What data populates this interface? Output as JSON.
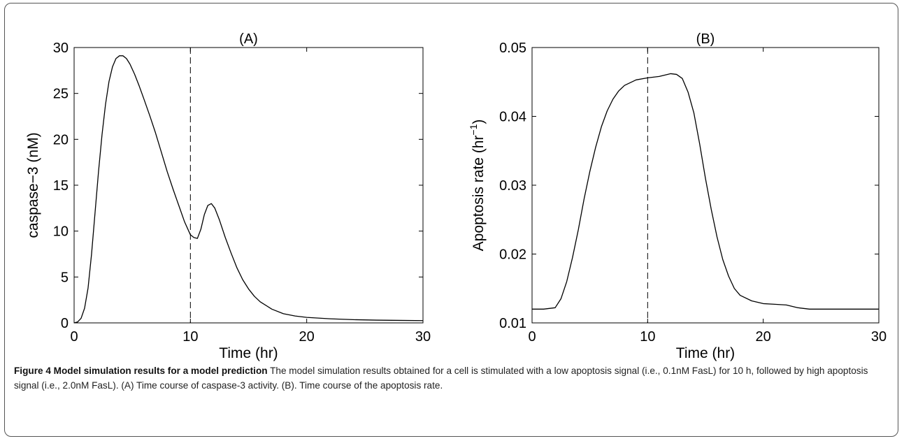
{
  "chart_data": [
    {
      "type": "line",
      "title": "(A)",
      "xlabel": "Time (hr)",
      "ylabel": "caspase−3 (nM)",
      "xlim": [
        0,
        30
      ],
      "ylim": [
        0,
        30
      ],
      "xticks": [
        0,
        10,
        20,
        30
      ],
      "yticks": [
        0,
        5,
        10,
        15,
        20,
        25,
        30
      ],
      "ytick_labels": [
        "0",
        "5",
        "10",
        "15",
        "20",
        "25",
        "30"
      ],
      "grid": false,
      "vline_x": 10,
      "series": [
        {
          "x": [
            0,
            0.3,
            0.6,
            0.9,
            1.2,
            1.5,
            1.8,
            2.1,
            2.4,
            2.7,
            3.0,
            3.3,
            3.6,
            3.9,
            4.2,
            4.5,
            4.8,
            5.2,
            5.6,
            6.0,
            6.5,
            7.0,
            7.5,
            8.0,
            8.5,
            9.0,
            9.5,
            10.0,
            10.3,
            10.6,
            10.9,
            11.2,
            11.5,
            11.8,
            12.1,
            12.5,
            13.0,
            13.5,
            14.0,
            14.5,
            15.0,
            15.5,
            16.0,
            17.0,
            18.0,
            19.0,
            20.0,
            22.0,
            24.0,
            26.0,
            28.0,
            30.0
          ],
          "y": [
            0,
            0.1,
            0.5,
            1.6,
            3.8,
            7.5,
            12.0,
            16.5,
            20.5,
            23.8,
            26.3,
            27.9,
            28.8,
            29.1,
            29.1,
            28.8,
            28.2,
            27.1,
            25.8,
            24.4,
            22.6,
            20.7,
            18.6,
            16.5,
            14.6,
            12.8,
            11.0,
            9.6,
            9.3,
            9.2,
            10.2,
            11.8,
            12.8,
            13.0,
            12.5,
            11.2,
            9.3,
            7.6,
            6.0,
            4.7,
            3.7,
            2.9,
            2.3,
            1.5,
            1.0,
            0.75,
            0.6,
            0.45,
            0.35,
            0.3,
            0.27,
            0.25
          ]
        }
      ]
    },
    {
      "type": "line",
      "title": "(B)",
      "xlabel": "Time (hr)",
      "ylabel": "Apoptosis rate (hr",
      "ylabel_sup": "−1",
      "ylabel_end": ")",
      "xlim": [
        0,
        30
      ],
      "ylim": [
        0.01,
        0.05
      ],
      "xticks": [
        0,
        10,
        20,
        30
      ],
      "yticks": [
        0.01,
        0.02,
        0.03,
        0.04,
        0.05
      ],
      "ytick_labels": [
        "0.01",
        "0.02",
        "0.03",
        "0.04",
        "0.05"
      ],
      "grid": false,
      "vline_x": 10,
      "series": [
        {
          "x": [
            0,
            1.0,
            2.0,
            2.5,
            3.0,
            3.5,
            4.0,
            4.5,
            5.0,
            5.5,
            6.0,
            6.5,
            7.0,
            7.5,
            8.0,
            9.0,
            10.0,
            11.0,
            11.5,
            12.0,
            12.5,
            13.0,
            13.5,
            14.0,
            14.5,
            15.0,
            15.5,
            16.0,
            16.5,
            17.0,
            17.5,
            18.0,
            19.0,
            20.0,
            21.0,
            22.0,
            23.0,
            24.0,
            26.0,
            28.0,
            30.0
          ],
          "y": [
            0.012,
            0.012,
            0.0122,
            0.0135,
            0.016,
            0.0195,
            0.0235,
            0.028,
            0.032,
            0.0355,
            0.0385,
            0.0408,
            0.0425,
            0.0437,
            0.0445,
            0.0453,
            0.0456,
            0.0458,
            0.046,
            0.0462,
            0.0461,
            0.0455,
            0.0435,
            0.0405,
            0.036,
            0.031,
            0.0265,
            0.0225,
            0.0192,
            0.0168,
            0.015,
            0.014,
            0.0132,
            0.0128,
            0.0127,
            0.0126,
            0.0122,
            0.012,
            0.012,
            0.012,
            0.012
          ]
        }
      ]
    }
  ],
  "caption": {
    "label": "Figure 4 Model simulation results for a model prediction",
    "text": " The model simulation results obtained for a cell is stimulated with a low apoptosis signal (i.e., 0.1nM FasL) for 10 h, followed by high apoptosis signal (i.e., 2.0nM FasL). (A) Time course of caspase-3 activity. (B). Time course of the apoptosis rate."
  }
}
